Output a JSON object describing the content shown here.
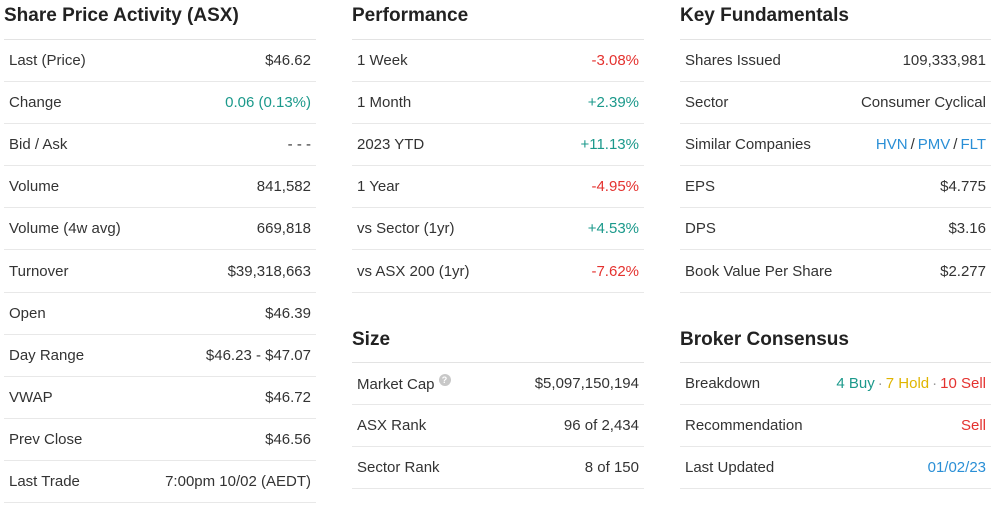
{
  "share_price": {
    "title": "Share Price Activity (ASX)",
    "rows": [
      {
        "label": "Last (Price)",
        "value": "$46.62"
      },
      {
        "label": "Change",
        "value": "0.06 (0.13%)"
      },
      {
        "label": "Bid / Ask",
        "value": "- - -"
      },
      {
        "label": "Volume",
        "value": "841,582"
      },
      {
        "label": "Volume (4w avg)",
        "value": "669,818"
      },
      {
        "label": "Turnover",
        "value": "$39,318,663"
      },
      {
        "label": "Open",
        "value": "$46.39"
      },
      {
        "label": "Day Range",
        "value": "$46.23 - $47.07"
      },
      {
        "label": "VWAP",
        "value": "$46.72"
      },
      {
        "label": "Prev Close",
        "value": "$46.56"
      },
      {
        "label": "Last Trade",
        "value": "7:00pm 10/02 (AEDT)"
      }
    ]
  },
  "performance": {
    "title": "Performance",
    "rows": [
      {
        "label": "1 Week",
        "value": "-3.08%"
      },
      {
        "label": "1 Month",
        "value": "+2.39%"
      },
      {
        "label": "2023 YTD",
        "value": "+11.13%"
      },
      {
        "label": "1 Year",
        "value": "-4.95%"
      },
      {
        "label": "vs Sector (1yr)",
        "value": "+4.53%"
      },
      {
        "label": "vs ASX 200 (1yr)",
        "value": "-7.62%"
      }
    ]
  },
  "size": {
    "title": "Size",
    "help_glyph": "?",
    "rows": [
      {
        "label": "Market Cap",
        "value": "$5,097,150,194"
      },
      {
        "label": "ASX Rank",
        "value": "96 of 2,434"
      },
      {
        "label": "Sector Rank",
        "value": "8 of 150"
      }
    ]
  },
  "fundamentals": {
    "title": "Key Fundamentals",
    "rows": [
      {
        "label": "Shares Issued",
        "value": "109,333,981"
      },
      {
        "label": "Sector",
        "value": "Consumer Cyclical"
      },
      {
        "label": "Similar Companies",
        "companies": [
          "HVN",
          "PMV",
          "FLT"
        ],
        "separator": "/"
      },
      {
        "label": "EPS",
        "value": "$4.775"
      },
      {
        "label": "DPS",
        "value": "$3.16"
      },
      {
        "label": "Book Value Per Share",
        "value": "$2.277"
      }
    ]
  },
  "broker": {
    "title": "Broker Consensus",
    "breakdown_label": "Breakdown",
    "buy": "4 Buy",
    "hold": "7 Hold",
    "sell": "10 Sell",
    "dot": "·",
    "recommendation_label": "Recommendation",
    "recommendation": "Sell",
    "updated_label": "Last Updated",
    "updated": "01/02/23"
  },
  "colors": {
    "positive": "#1b998b",
    "negative": "#e4322f",
    "link": "#2a8fd6",
    "hold": "#e0b500"
  }
}
